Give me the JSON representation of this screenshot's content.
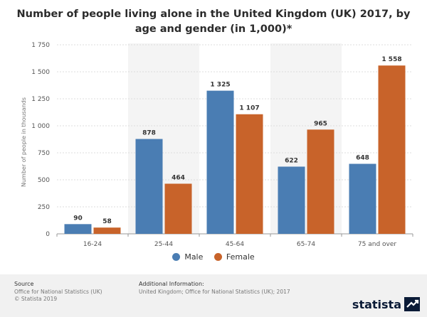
{
  "chart_data": {
    "type": "bar",
    "title": "Number of people living alone in the United Kingdom (UK) 2017, by age and gender (in 1,000)*",
    "ylabel": "Number of people in thousands",
    "xlabel": "",
    "ylim": [
      0,
      1750
    ],
    "yticks": [
      0,
      250,
      500,
      750,
      1000,
      1250,
      1500,
      1750
    ],
    "ytick_labels": [
      "0",
      "250",
      "500",
      "750",
      "1 000",
      "1 250",
      "1 500",
      "1 750"
    ],
    "categories": [
      "16-24",
      "25-44",
      "45-64",
      "65-74",
      "75 and over"
    ],
    "series": [
      {
        "name": "Male",
        "color": "#4a7db3",
        "values": [
          90,
          878,
          1325,
          622,
          648
        ],
        "labels": [
          "90",
          "878",
          "1 325",
          "622",
          "648"
        ]
      },
      {
        "name": "Female",
        "color": "#c8632a",
        "values": [
          58,
          464,
          1107,
          965,
          1558
        ],
        "labels": [
          "58",
          "464",
          "1 107",
          "965",
          "1 558"
        ]
      }
    ],
    "grid": true,
    "legend": "bottom-center"
  },
  "footer": {
    "source_heading": "Source",
    "source_line1": "Office for National Statistics (UK)",
    "source_line2": "© Statista 2019",
    "info_heading": "Additional Information:",
    "info_line": "United Kingdom; Office for National Statistics (UK); 2017",
    "brand": "statista"
  }
}
